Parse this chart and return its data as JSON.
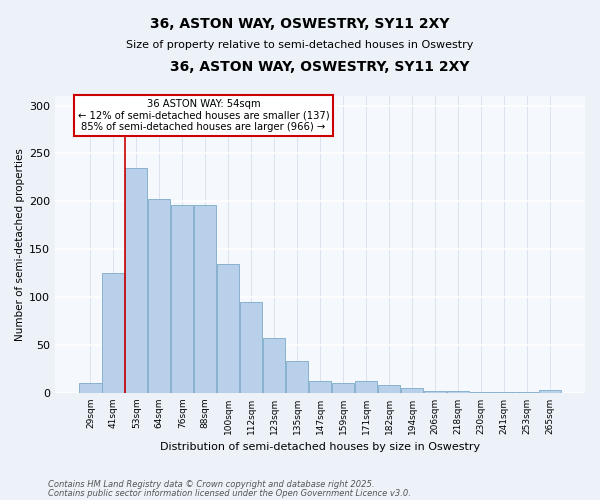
{
  "title1": "36, ASTON WAY, OSWESTRY, SY11 2XY",
  "title2": "Size of property relative to semi-detached houses in Oswestry",
  "xlabel": "Distribution of semi-detached houses by size in Oswestry",
  "ylabel": "Number of semi-detached properties",
  "categories": [
    "29sqm",
    "41sqm",
    "53sqm",
    "64sqm",
    "76sqm",
    "88sqm",
    "100sqm",
    "112sqm",
    "123sqm",
    "135sqm",
    "147sqm",
    "159sqm",
    "171sqm",
    "182sqm",
    "194sqm",
    "206sqm",
    "218sqm",
    "230sqm",
    "241sqm",
    "253sqm",
    "265sqm"
  ],
  "values": [
    10,
    125,
    235,
    202,
    196,
    196,
    135,
    95,
    57,
    33,
    12,
    10,
    12,
    8,
    5,
    2,
    2,
    1,
    1,
    1,
    3
  ],
  "bar_color": "#b8d0ea",
  "bar_edge_color": "#7aaac8",
  "vline_color": "#cc0000",
  "vline_index": 1.5,
  "annotation_title": "36 ASTON WAY: 54sqm",
  "annotation_line1": "← 12% of semi-detached houses are smaller (137)",
  "annotation_line2": "85% of semi-detached houses are larger (966) →",
  "annotation_box_edge_color": "#cc0000",
  "ylim": [
    0,
    310
  ],
  "yticks": [
    0,
    50,
    100,
    150,
    200,
    250,
    300
  ],
  "footnote1": "Contains HM Land Registry data © Crown copyright and database right 2025.",
  "footnote2": "Contains public sector information licensed under the Open Government Licence v3.0.",
  "bg_color": "#edf2f8",
  "plot_bg_color": "#f5f8fc",
  "grid_color_x": "#d0dce8",
  "grid_color_y": "#ffffff"
}
